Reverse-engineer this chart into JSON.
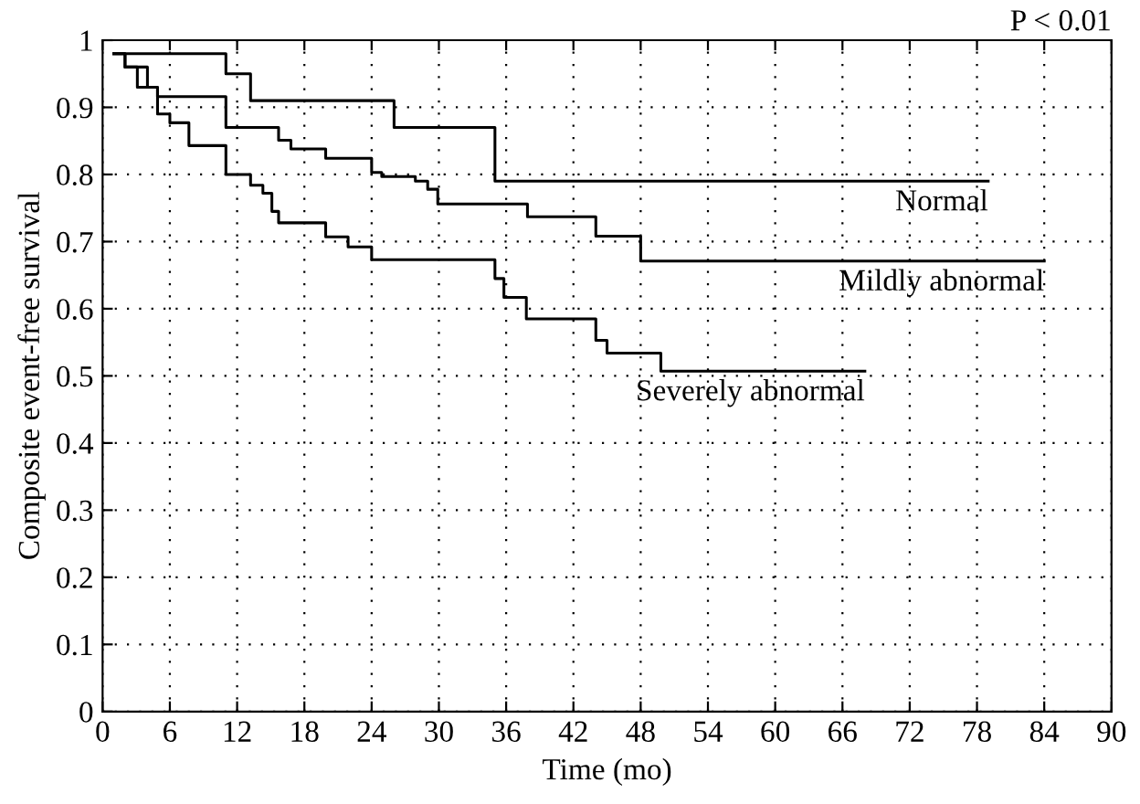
{
  "chart_data": {
    "type": "step",
    "xlabel": "Time (mo)",
    "ylabel": "Composite event-free survival",
    "annotations": [
      "P < 0.01"
    ],
    "xlim": [
      0,
      90
    ],
    "xticks": [
      0,
      6,
      12,
      18,
      24,
      30,
      36,
      42,
      48,
      54,
      60,
      66,
      72,
      78,
      84,
      90
    ],
    "ylim": [
      0,
      1
    ],
    "yticks": [
      0,
      0.1,
      0.2,
      0.3,
      0.4,
      0.5,
      0.6,
      0.7,
      0.8,
      0.9,
      1
    ],
    "grid": true,
    "legend": false,
    "line_style": "solid",
    "marker": "none",
    "series": [
      {
        "name": "Normal",
        "color": "#000000",
        "x": [
          1,
          11,
          13.2,
          26,
          35,
          79
        ],
        "values": [
          0.98,
          0.95,
          0.91,
          0.87,
          0.79,
          0.79
        ]
      },
      {
        "name": "Mildly abnormal",
        "color": "#000000",
        "x": [
          1,
          2,
          4,
          4.9,
          11,
          15.7,
          16.8,
          19.9,
          24,
          24.9,
          27.9,
          29,
          29.9,
          37.9,
          44,
          48,
          84
        ],
        "values": [
          0.98,
          0.96,
          0.93,
          0.916,
          0.87,
          0.851,
          0.838,
          0.824,
          0.803,
          0.797,
          0.79,
          0.778,
          0.756,
          0.737,
          0.708,
          0.671,
          0.671
        ]
      },
      {
        "name": "Severely abnormal",
        "color": "#000000",
        "x": [
          1,
          2,
          3.1,
          4.9,
          6,
          7.7,
          11,
          13.2,
          14.3,
          15.1,
          15.7,
          19.9,
          21.9,
          24,
          35,
          35.8,
          37.8,
          44,
          45,
          49.8,
          68
        ],
        "values": [
          0.98,
          0.96,
          0.93,
          0.89,
          0.877,
          0.843,
          0.8,
          0.784,
          0.772,
          0.745,
          0.728,
          0.707,
          0.692,
          0.673,
          0.645,
          0.617,
          0.585,
          0.553,
          0.534,
          0.507,
          0.507
        ]
      }
    ]
  }
}
